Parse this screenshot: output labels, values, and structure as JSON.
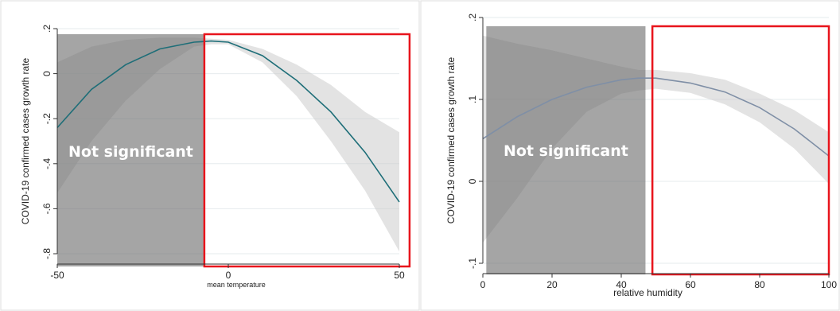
{
  "chart_data": [
    {
      "type": "line",
      "title": "",
      "xlabel": "mean temperature",
      "ylabel": "COVID-19 confirmed cases growth rate",
      "xlim": [
        -50,
        50
      ],
      "ylim": [
        -0.8,
        0.2
      ],
      "x_ticks": [
        -50,
        0,
        50
      ],
      "x_tick_labels": [
        "-50",
        "0",
        "50"
      ],
      "y_ticks": [
        -0.8,
        -0.6,
        -0.4,
        -0.2,
        0,
        0.2
      ],
      "y_tick_labels": [
        "-.8",
        "-.6",
        "-.4",
        "-.2",
        "0",
        ".2"
      ],
      "grid": true,
      "line_color": "#1e6e78",
      "series": [
        {
          "x": [
            -50,
            -40,
            -30,
            -20,
            -10,
            -5,
            0,
            10,
            20,
            30,
            40,
            50
          ],
          "y": [
            -0.24,
            -0.07,
            0.04,
            0.11,
            0.14,
            0.145,
            0.14,
            0.08,
            -0.03,
            -0.17,
            -0.35,
            -0.57
          ],
          "ci_lower": [
            -0.53,
            -0.3,
            -0.12,
            0.02,
            0.12,
            0.13,
            0.13,
            0.05,
            -0.1,
            -0.3,
            -0.52,
            -0.79
          ],
          "ci_upper": [
            0.05,
            0.12,
            0.15,
            0.16,
            0.16,
            0.155,
            0.15,
            0.11,
            0.04,
            -0.05,
            -0.17,
            -0.26
          ]
        }
      ],
      "shaded_region": {
        "x_from": -50,
        "x_to": -7,
        "label": "Not significant"
      },
      "highlight_box": {
        "x_from": -7,
        "x_to": 53
      }
    },
    {
      "type": "line",
      "title": "",
      "xlabel": "relative humidity",
      "ylabel": "COVID-19 confirmed cases growth rate",
      "xlim": [
        0,
        100
      ],
      "ylim": [
        -0.1,
        0.2
      ],
      "x_ticks": [
        0,
        20,
        40,
        60,
        80,
        100
      ],
      "x_tick_labels": [
        "0",
        "20",
        "40",
        "60",
        "80",
        "100"
      ],
      "y_ticks": [
        -0.1,
        0,
        0.1,
        0.2
      ],
      "y_tick_labels": [
        "-.1",
        "0",
        ".1",
        ".2"
      ],
      "grid": true,
      "line_color": "#7f8fa6",
      "series": [
        {
          "x": [
            0,
            10,
            20,
            30,
            40,
            45,
            50,
            60,
            70,
            80,
            90,
            100
          ],
          "y": [
            0.052,
            0.079,
            0.1,
            0.115,
            0.124,
            0.126,
            0.126,
            0.12,
            0.109,
            0.09,
            0.064,
            0.031
          ],
          "ci_lower": [
            -0.075,
            -0.02,
            0.04,
            0.085,
            0.107,
            0.111,
            0.113,
            0.108,
            0.094,
            0.072,
            0.04,
            -0.003
          ],
          "ci_upper": [
            0.178,
            0.168,
            0.16,
            0.15,
            0.14,
            0.136,
            0.136,
            0.132,
            0.124,
            0.107,
            0.087,
            0.06
          ]
        }
      ],
      "shaded_region": {
        "x_from": 1,
        "x_to": 47,
        "label": "Not significant"
      },
      "highlight_box": {
        "x_from": 49,
        "x_to": 100
      }
    }
  ]
}
